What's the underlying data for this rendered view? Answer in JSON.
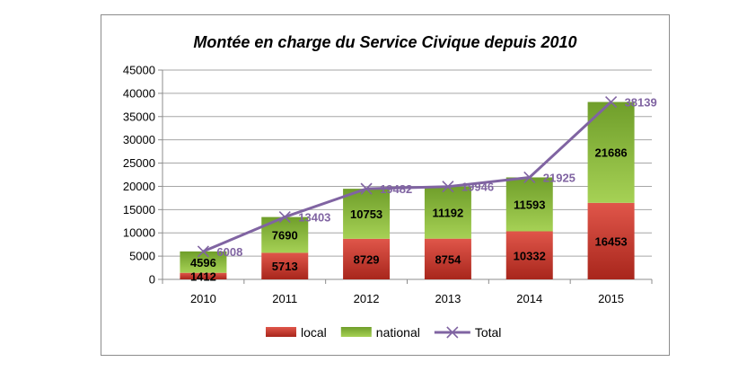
{
  "chart_data": {
    "type": "bar",
    "stacked": true,
    "title": "Montée en charge du Service Civique depuis 2010",
    "categories": [
      "2010",
      "2011",
      "2012",
      "2013",
      "2014",
      "2015"
    ],
    "series": [
      {
        "name": "local",
        "type": "bar",
        "color": "#c0392b",
        "values": [
          1412,
          5713,
          8729,
          8754,
          10332,
          16453
        ]
      },
      {
        "name": "national",
        "type": "bar",
        "color": "#8bbf3a",
        "values": [
          4596,
          7690,
          10753,
          11192,
          11593,
          21686
        ]
      },
      {
        "name": "Total",
        "type": "line",
        "color": "#8064a2",
        "marker": "x",
        "values": [
          6008,
          13403,
          19482,
          19946,
          21925,
          38139
        ]
      }
    ],
    "ylim": [
      0,
      45000
    ],
    "yticks": [
      0,
      5000,
      10000,
      15000,
      20000,
      25000,
      30000,
      35000,
      40000,
      45000
    ],
    "grid": true,
    "legend_position": "bottom"
  }
}
